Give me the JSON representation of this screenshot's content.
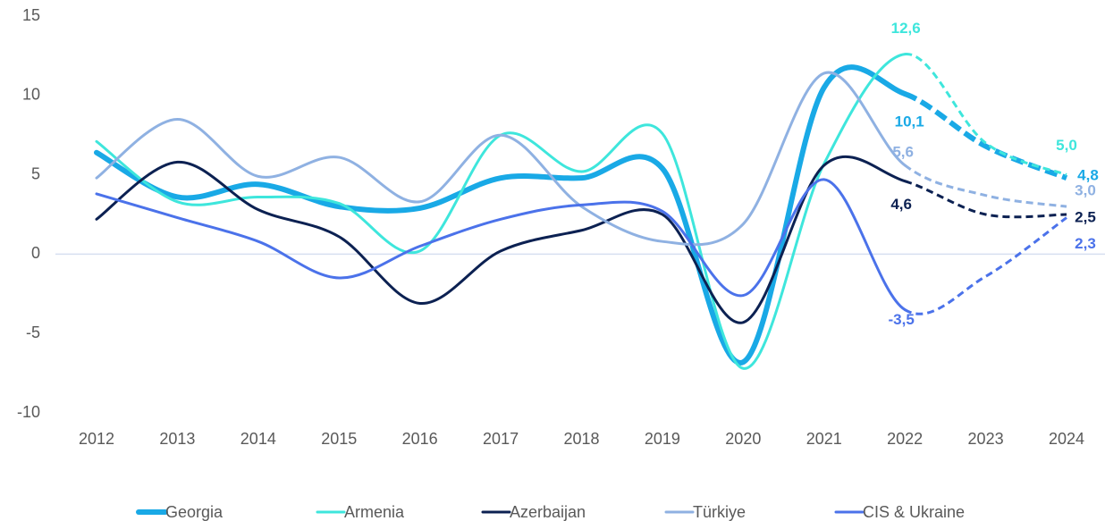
{
  "chart_data": {
    "type": "line",
    "categories": [
      "2012",
      "2013",
      "2014",
      "2015",
      "2016",
      "2017",
      "2018",
      "2019",
      "2020",
      "2021",
      "2022",
      "2023",
      "2024"
    ],
    "forecast_from": "2022",
    "ylim": [
      -10,
      15
    ],
    "yticks": [
      -10,
      -5,
      0,
      5,
      10,
      15
    ],
    "series": [
      {
        "name": "Georgia",
        "color": "#19a9e6",
        "line_width": 6,
        "values": [
          6.4,
          3.6,
          4.4,
          3.0,
          2.9,
          4.8,
          4.8,
          5.4,
          -6.8,
          10.5,
          10.1,
          6.8,
          4.8
        ],
        "value_labels": [
          null,
          null,
          null,
          null,
          null,
          null,
          null,
          null,
          null,
          null,
          "10,1",
          null,
          "4,8"
        ]
      },
      {
        "name": "Armenia",
        "color": "#3ee6dc",
        "line_width": 3,
        "values": [
          7.1,
          3.3,
          3.6,
          3.2,
          0.2,
          7.5,
          5.2,
          7.6,
          -7.2,
          5.7,
          12.6,
          7.0,
          5.0
        ],
        "value_labels": [
          null,
          null,
          null,
          null,
          null,
          null,
          null,
          null,
          null,
          null,
          "12,6",
          null,
          "5,0"
        ]
      },
      {
        "name": "Azerbaijan",
        "color": "#0c2152",
        "line_width": 3,
        "values": [
          2.2,
          5.8,
          2.8,
          1.1,
          -3.1,
          0.2,
          1.5,
          2.5,
          -4.3,
          5.6,
          4.6,
          2.5,
          2.5
        ],
        "value_labels": [
          null,
          null,
          null,
          null,
          null,
          null,
          null,
          null,
          null,
          null,
          "4,6",
          null,
          "2,5"
        ]
      },
      {
        "name": "Türkiye",
        "color": "#8fb1e2",
        "line_width": 3,
        "values": [
          4.8,
          8.5,
          4.9,
          6.1,
          3.3,
          7.5,
          3.0,
          0.8,
          1.9,
          11.4,
          5.6,
          3.7,
          3.0
        ],
        "value_labels": [
          null,
          null,
          null,
          null,
          null,
          null,
          null,
          null,
          null,
          null,
          "5,6",
          null,
          "3,0"
        ]
      },
      {
        "name": "CIS & Ukraine",
        "color": "#4b72ea",
        "line_width": 3,
        "values": [
          3.8,
          2.3,
          0.8,
          -1.5,
          0.5,
          2.2,
          3.1,
          2.7,
          -2.6,
          4.7,
          -3.5,
          -1.4,
          2.3
        ],
        "value_labels": [
          null,
          null,
          null,
          null,
          null,
          null,
          null,
          null,
          null,
          null,
          "-3,5",
          null,
          "2,3"
        ]
      }
    ]
  }
}
